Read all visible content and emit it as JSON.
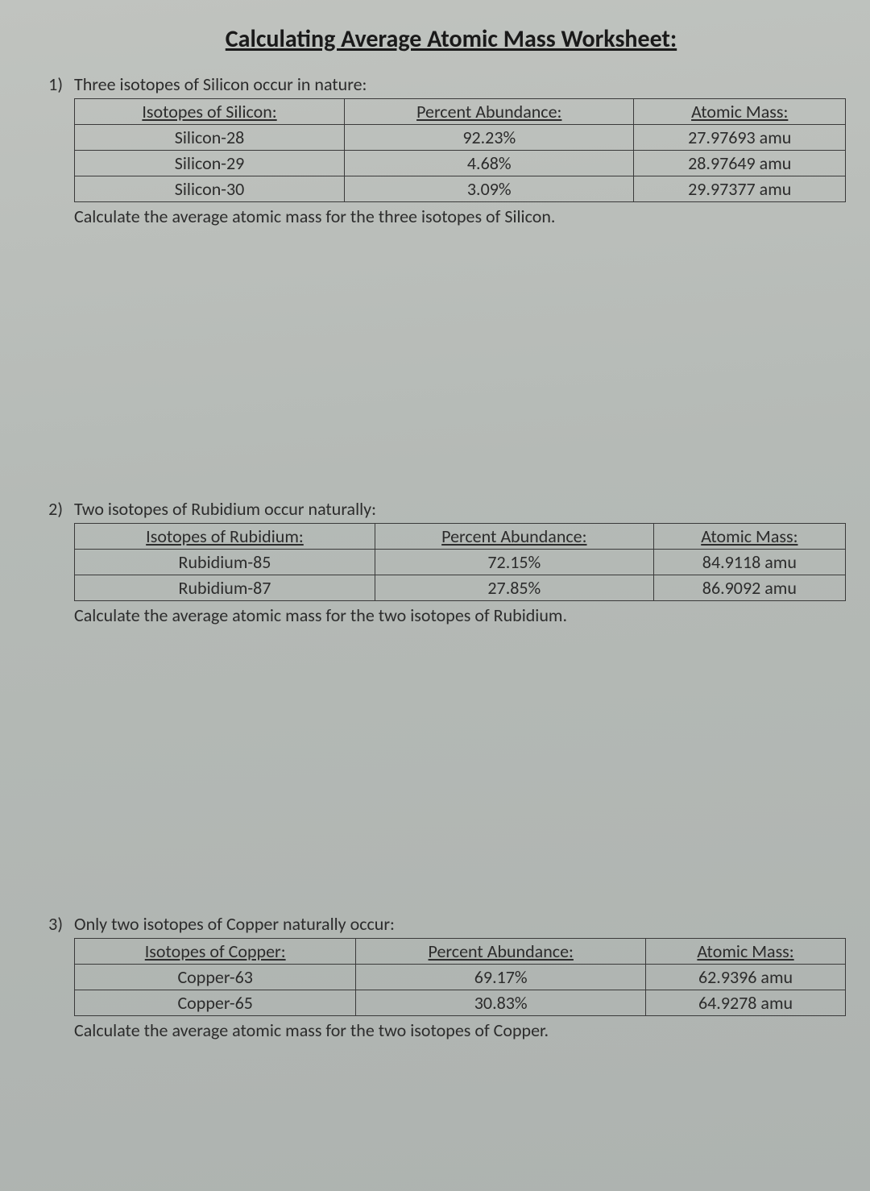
{
  "title": "Calculating Average Atomic Mass Worksheet:",
  "questions": [
    {
      "num": "1)",
      "prompt": "Three isotopes of Silicon occur in nature:",
      "headers": [
        "Isotopes of Silicon:",
        "Percent Abundance:",
        "Atomic Mass:"
      ],
      "rows": [
        [
          "Silicon-28",
          "92.23%",
          "27.97693 amu"
        ],
        [
          "Silicon-29",
          "4.68%",
          "28.97649 amu"
        ],
        [
          "Silicon-30",
          "3.09%",
          "29.97377 amu"
        ]
      ],
      "instruct": "Calculate the average atomic mass for the three isotopes of Silicon."
    },
    {
      "num": "2)",
      "prompt": "Two isotopes of Rubidium occur naturally:",
      "headers": [
        "Isotopes of Rubidium:",
        "Percent Abundance:",
        "Atomic Mass:"
      ],
      "rows": [
        [
          "Rubidium-85",
          "72.15%",
          "84.9118 amu"
        ],
        [
          "Rubidium-87",
          "27.85%",
          "86.9092 amu"
        ]
      ],
      "instruct": "Calculate the average atomic mass for the two isotopes of Rubidium."
    },
    {
      "num": "3)",
      "prompt": "Only two isotopes of Copper naturally occur:",
      "headers": [
        "Isotopes of Copper:",
        "Percent Abundance:",
        "Atomic Mass:"
      ],
      "rows": [
        [
          "Copper-63",
          "69.17%",
          "62.9396 amu"
        ],
        [
          "Copper-65",
          "30.83%",
          "64.9278 amu"
        ]
      ],
      "instruct": "Calculate the average atomic mass for the two isotopes of Copper."
    }
  ],
  "style": {
    "background_gradient": [
      "#c0c3bf",
      "#b5bab6",
      "#aeb3b0"
    ],
    "text_color": "#2c2c2c",
    "border_color": "#3a3a3a",
    "title_fontsize": 30,
    "body_fontsize": 22,
    "font_family": "Calibri"
  }
}
